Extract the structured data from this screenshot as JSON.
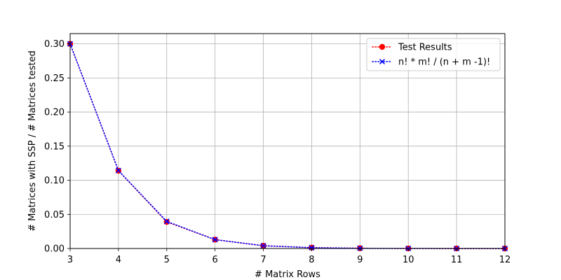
{
  "chart_data": {
    "type": "line",
    "title": "",
    "xlabel": "# Matrix Rows",
    "ylabel": "# Matrices with SSP / # Matrices tested",
    "x": [
      3,
      4,
      5,
      6,
      7,
      8,
      9,
      10,
      11,
      12
    ],
    "xlim": [
      3,
      12
    ],
    "ylim": [
      0,
      0.315
    ],
    "xticks": [
      "3",
      "4",
      "5",
      "6",
      "7",
      "8",
      "9",
      "10",
      "11",
      "12"
    ],
    "yticks": [
      "0.00",
      "0.05",
      "0.10",
      "0.15",
      "0.20",
      "0.25",
      "0.30"
    ],
    "grid": true,
    "legend_position": "top-right",
    "series": [
      {
        "name": "Test Results",
        "color": "#ff0000",
        "marker": "circle",
        "linestyle": "dotted",
        "values": [
          0.3,
          0.114,
          0.039,
          0.013,
          0.004,
          0.0013,
          0.0004,
          0.0001,
          4e-05,
          1e-05
        ]
      },
      {
        "name": "n! * m! / (n + m -1)!",
        "color": "#0000ff",
        "marker": "x",
        "linestyle": "dotted",
        "values": [
          0.3,
          0.1143,
          0.0397,
          0.013,
          0.0041,
          0.0012,
          0.00036,
          0.0001,
          3e-05,
          8e-06
        ]
      }
    ]
  }
}
